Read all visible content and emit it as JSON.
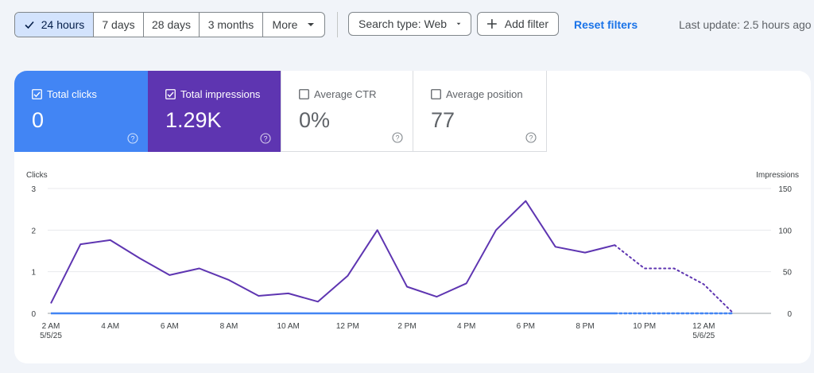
{
  "toolbar": {
    "ranges": [
      "24 hours",
      "7 days",
      "28 days",
      "3 months",
      "More"
    ],
    "selected_range": "24 hours",
    "search_type": "Search type: Web",
    "add_filter": "Add filter",
    "reset_filters": "Reset filters",
    "last_update": "Last update: 2.5 hours ago"
  },
  "metrics": {
    "clicks": {
      "label": "Total clicks",
      "value": "0",
      "checked": true,
      "color": "#4285f4"
    },
    "impressions": {
      "label": "Total impressions",
      "value": "1.29K",
      "checked": true,
      "color": "#5e35b1"
    },
    "ctr": {
      "label": "Average CTR",
      "value": "0%",
      "checked": false
    },
    "position": {
      "label": "Average position",
      "value": "77",
      "checked": false
    }
  },
  "chart_data": {
    "type": "line",
    "ylabel_left": "Clicks",
    "ylabel_right": "Impressions",
    "ylim_left": [
      0,
      3
    ],
    "yticks_left": [
      "0",
      "1",
      "2",
      "3"
    ],
    "ylim_right": [
      0,
      150
    ],
    "yticks_right": [
      "0",
      "50",
      "100",
      "150"
    ],
    "x_labels": [
      [
        "2 AM",
        "5/5/25"
      ],
      [
        "4 AM"
      ],
      [
        "6 AM"
      ],
      [
        "8 AM"
      ],
      [
        "10 AM"
      ],
      [
        "12 PM"
      ],
      [
        "2 PM"
      ],
      [
        "4 PM"
      ],
      [
        "6 PM"
      ],
      [
        "8 PM"
      ],
      [
        "10 PM"
      ],
      [
        "12 AM",
        "5/6/25"
      ]
    ],
    "grid": true,
    "series": [
      {
        "name": "Impressions",
        "color": "#5e35b1",
        "axis": "right",
        "values": [
          12,
          83,
          88,
          66,
          46,
          54,
          40,
          21,
          24,
          14,
          45,
          100,
          32,
          20,
          36,
          100,
          135,
          80,
          73,
          82
        ],
        "projected": [
          82,
          54,
          54,
          35,
          0
        ]
      },
      {
        "name": "Clicks",
        "color": "#4285f4",
        "axis": "left",
        "values": [
          0,
          0,
          0,
          0,
          0,
          0,
          0,
          0,
          0,
          0,
          0,
          0,
          0,
          0,
          0,
          0,
          0,
          0,
          0,
          0
        ],
        "projected": [
          0,
          0,
          0,
          0,
          0
        ]
      }
    ]
  }
}
